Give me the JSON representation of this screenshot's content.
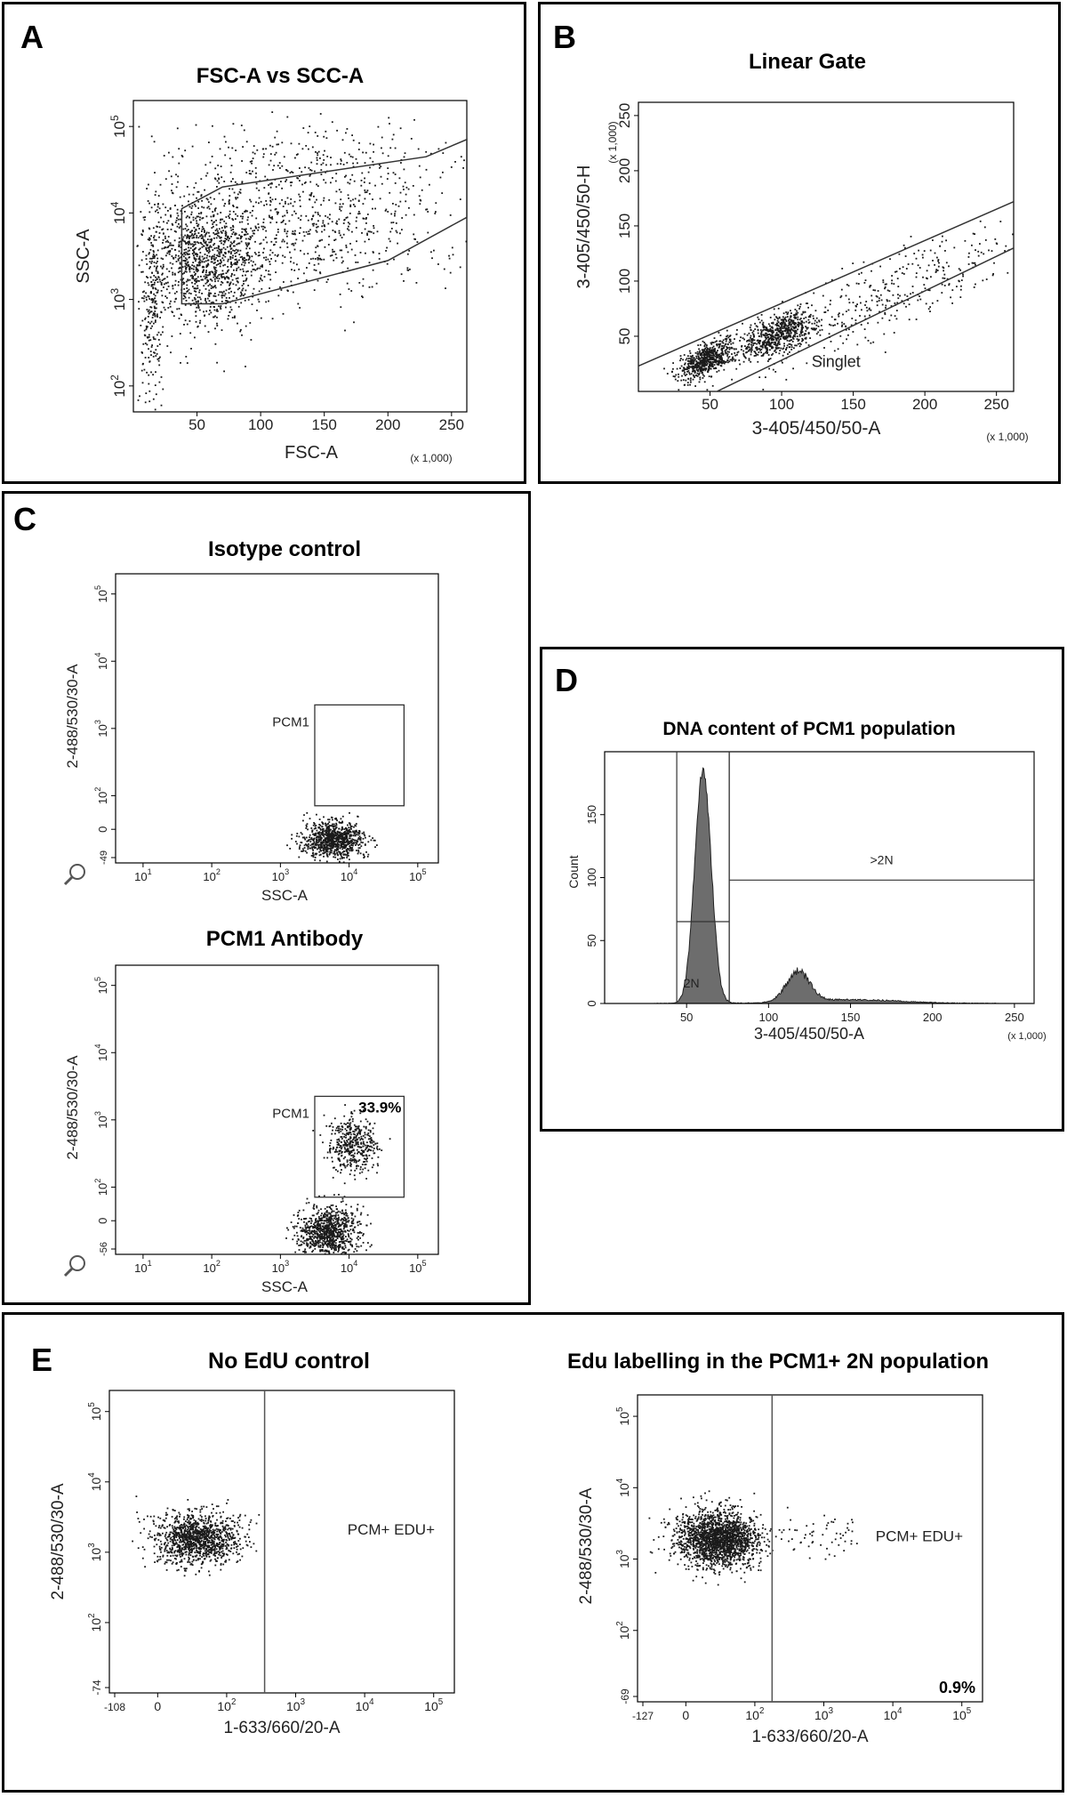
{
  "colors": {
    "frame": "#000000",
    "dots": "#1a1a1a",
    "gate": "#333333",
    "hist_fill": "#6d6d6d"
  },
  "panels": {
    "A": {
      "letter": "A"
    },
    "B": {
      "letter": "B"
    },
    "C": {
      "letter": "C"
    },
    "D": {
      "letter": "D"
    },
    "E": {
      "letter": "E"
    }
  },
  "chart_data": [
    {
      "id": "A",
      "type": "scatter",
      "title": "FSC-A vs SCC-A",
      "xlabel": "FSC-A",
      "ylabel": "SSC-A",
      "x_unit_note": "(x 1,000)",
      "xlim": [
        0,
        262
      ],
      "ylim_log10": [
        1.7,
        5.3
      ],
      "xticks": [
        {
          "v": 50,
          "label": "50"
        },
        {
          "v": 100,
          "label": "100"
        },
        {
          "v": 150,
          "label": "150"
        },
        {
          "v": 200,
          "label": "200"
        },
        {
          "v": 250,
          "label": "250"
        }
      ],
      "yticks": [
        {
          "v": 2,
          "base": "10",
          "exp": "2"
        },
        {
          "v": 3,
          "base": "10",
          "exp": "3"
        },
        {
          "v": 4,
          "base": "10",
          "exp": "4"
        },
        {
          "v": 5,
          "base": "10",
          "exp": "5"
        }
      ],
      "gate": [
        [
          38,
          4.05
        ],
        [
          70,
          4.3
        ],
        [
          230,
          4.65
        ],
        [
          262,
          4.85
        ],
        [
          262,
          3.95
        ],
        [
          200,
          3.45
        ],
        [
          70,
          2.95
        ],
        [
          38,
          2.95
        ]
      ],
      "clusters": [
        {
          "cx": 55,
          "cy": 3.45,
          "sx": 22,
          "sy": 0.38,
          "n": 1100
        },
        {
          "cx": 130,
          "cy": 3.85,
          "sx": 55,
          "sy": 0.38,
          "n": 700
        },
        {
          "cx": 14,
          "cy": 2.9,
          "sx": 5,
          "sy": 0.55,
          "n": 220
        },
        {
          "cx": 150,
          "cy": 4.6,
          "sx": 80,
          "sy": 0.25,
          "n": 250
        }
      ]
    },
    {
      "id": "B",
      "type": "scatter",
      "title": "Linear Gate",
      "xlabel": "3-405/450/50-A",
      "ylabel": "3-405/450/50-H",
      "x_unit_note": "(x 1,000)",
      "y_unit_note": "(x 1,000)",
      "xlim": [
        0,
        262
      ],
      "ylim": [
        0,
        262
      ],
      "xticks": [
        {
          "v": 50,
          "label": "50"
        },
        {
          "v": 100,
          "label": "100"
        },
        {
          "v": 150,
          "label": "150"
        },
        {
          "v": 200,
          "label": "200"
        },
        {
          "v": 250,
          "label": "250"
        }
      ],
      "yticks": [
        {
          "v": 50,
          "label": "50"
        },
        {
          "v": 100,
          "label": "100"
        },
        {
          "v": 150,
          "label": "150"
        },
        {
          "v": 200,
          "label": "200"
        },
        {
          "v": 250,
          "label": "250"
        }
      ],
      "gate_lines": [
        [
          [
            0,
            23
          ],
          [
            262,
            172
          ]
        ],
        [
          [
            15,
            -25
          ],
          [
            262,
            130
          ]
        ]
      ],
      "gate_label": "Singlet",
      "clusters": [
        {
          "cx": 48,
          "cy": 30,
          "sx": 10,
          "sy": 7,
          "n": 650,
          "slope": 0.55
        },
        {
          "cx": 97,
          "cy": 52,
          "sx": 12,
          "sy": 9,
          "n": 650,
          "slope": 0.55
        },
        {
          "cx": 170,
          "cy": 85,
          "sx": 50,
          "sy": 18,
          "n": 380,
          "slope": 0.55
        }
      ]
    },
    {
      "id": "C1",
      "type": "scatter",
      "title": "Isotype control",
      "xlabel": "SSC-A",
      "ylabel": "2-488/530/30-A",
      "y_min_label": "-49",
      "xlim_log10": [
        0.6,
        5.3
      ],
      "ylim_log10": [
        1.0,
        5.3
      ],
      "xticks": [
        {
          "v": 1,
          "base": "10",
          "exp": "1"
        },
        {
          "v": 2,
          "base": "10",
          "exp": "2"
        },
        {
          "v": 3,
          "base": "10",
          "exp": "3"
        },
        {
          "v": 4,
          "base": "10",
          "exp": "4"
        },
        {
          "v": 5,
          "base": "10",
          "exp": "5"
        }
      ],
      "yticks": [
        {
          "v": 1.5,
          "base": "0",
          "exp": ""
        },
        {
          "v": 2,
          "base": "10",
          "exp": "2"
        },
        {
          "v": 3,
          "base": "10",
          "exp": "3"
        },
        {
          "v": 4,
          "base": "10",
          "exp": "4"
        },
        {
          "v": 5,
          "base": "10",
          "exp": "5"
        }
      ],
      "gate_box": [
        3.5,
        1.85,
        4.8,
        3.35
      ],
      "gate_label": "PCM1",
      "percent": "",
      "clusters": [
        {
          "cx": 3.75,
          "cy": 1.35,
          "sx": 0.22,
          "sy": 0.14,
          "n": 900
        }
      ]
    },
    {
      "id": "C2",
      "type": "scatter",
      "title": "PCM1 Antibody",
      "xlabel": "SSC-A",
      "ylabel": "2-488/530/30-A",
      "y_min_label": "-56",
      "xlim_log10": [
        0.6,
        5.3
      ],
      "ylim_log10": [
        1.0,
        5.3
      ],
      "xticks": [
        {
          "v": 1,
          "base": "10",
          "exp": "1"
        },
        {
          "v": 2,
          "base": "10",
          "exp": "2"
        },
        {
          "v": 3,
          "base": "10",
          "exp": "3"
        },
        {
          "v": 4,
          "base": "10",
          "exp": "4"
        },
        {
          "v": 5,
          "base": "10",
          "exp": "5"
        }
      ],
      "yticks": [
        {
          "v": 1.5,
          "base": "0",
          "exp": ""
        },
        {
          "v": 2,
          "base": "10",
          "exp": "2"
        },
        {
          "v": 3,
          "base": "10",
          "exp": "3"
        },
        {
          "v": 4,
          "base": "10",
          "exp": "4"
        },
        {
          "v": 5,
          "base": "10",
          "exp": "5"
        }
      ],
      "gate_box": [
        3.5,
        1.85,
        4.8,
        3.35
      ],
      "gate_label": "PCM1",
      "percent": "33.9%",
      "clusters": [
        {
          "cx": 3.7,
          "cy": 1.35,
          "sx": 0.22,
          "sy": 0.18,
          "n": 900
        },
        {
          "cx": 4.05,
          "cy": 2.65,
          "sx": 0.18,
          "sy": 0.22,
          "n": 430
        }
      ]
    },
    {
      "id": "D",
      "type": "histogram",
      "title": "DNA content of PCM1 population",
      "xlabel": "3-405/450/50-A",
      "ylabel": "Count",
      "x_unit_note": "(x 1,000)",
      "xlim": [
        0,
        262
      ],
      "ylim": [
        0,
        200
      ],
      "xticks": [
        {
          "v": 50,
          "label": "50"
        },
        {
          "v": 100,
          "label": "100"
        },
        {
          "v": 150,
          "label": "150"
        },
        {
          "v": 200,
          "label": "200"
        },
        {
          "v": 250,
          "label": "250"
        }
      ],
      "yticks": [
        {
          "v": 0,
          "label": "0"
        },
        {
          "v": 50,
          "label": "50"
        },
        {
          "v": 100,
          "label": "100"
        },
        {
          "v": 150,
          "label": "150"
        }
      ],
      "peaks": [
        {
          "center": 60,
          "sd": 5,
          "height": 185
        },
        {
          "center": 118,
          "sd": 7,
          "height": 24
        },
        {
          "center": 150,
          "sd": 30,
          "height": 3
        }
      ],
      "gates": [
        {
          "label": "2N",
          "x0": 44,
          "x1": 76,
          "y": 65
        },
        {
          "label": ">2N",
          "x0": 76,
          "x1": 262,
          "y": 98
        }
      ]
    },
    {
      "id": "E1",
      "type": "scatter",
      "title": "No EdU control",
      "xlabel": "1-633/660/20-A",
      "ylabel": "2-488/530/30-A",
      "x_min_label": "-108",
      "y_min_label": "-74",
      "xlim_log10": [
        0.3,
        5.3
      ],
      "ylim_log10": [
        1.0,
        5.3
      ],
      "xticks": [
        {
          "v": 1.0,
          "base": "0",
          "exp": ""
        },
        {
          "v": 2,
          "base": "10",
          "exp": "2"
        },
        {
          "v": 3,
          "base": "10",
          "exp": "3"
        },
        {
          "v": 4,
          "base": "10",
          "exp": "4"
        },
        {
          "v": 5,
          "base": "10",
          "exp": "5"
        }
      ],
      "yticks": [
        {
          "v": 2,
          "base": "10",
          "exp": "2"
        },
        {
          "v": 3,
          "base": "10",
          "exp": "3"
        },
        {
          "v": 4,
          "base": "10",
          "exp": "4"
        },
        {
          "v": 5,
          "base": "10",
          "exp": "5"
        }
      ],
      "divider_x": 2.55,
      "gate_label": "PCM+ EDU+",
      "percent": "",
      "clusters": [
        {
          "cx": 1.55,
          "cy": 3.2,
          "sx": 0.3,
          "sy": 0.18,
          "n": 1200
        }
      ]
    },
    {
      "id": "E2",
      "type": "scatter",
      "title": "Edu labelling in the PCM1+ 2N population",
      "xlabel": "1-633/660/20-A",
      "ylabel": "2-488/530/30-A",
      "x_min_label": "-127",
      "y_min_label": "-69",
      "xlim_log10": [
        0.3,
        5.3
      ],
      "ylim_log10": [
        1.0,
        5.3
      ],
      "xticks": [
        {
          "v": 1.0,
          "base": "0",
          "exp": ""
        },
        {
          "v": 2,
          "base": "10",
          "exp": "2"
        },
        {
          "v": 3,
          "base": "10",
          "exp": "3"
        },
        {
          "v": 4,
          "base": "10",
          "exp": "4"
        },
        {
          "v": 5,
          "base": "10",
          "exp": "5"
        }
      ],
      "yticks": [
        {
          "v": 2,
          "base": "10",
          "exp": "2"
        },
        {
          "v": 3,
          "base": "10",
          "exp": "3"
        },
        {
          "v": 4,
          "base": "10",
          "exp": "4"
        },
        {
          "v": 5,
          "base": "10",
          "exp": "5"
        }
      ],
      "divider_x": 2.25,
      "gate_label": "PCM+ EDU+",
      "percent": "0.9%",
      "clusters": [
        {
          "cx": 1.45,
          "cy": 3.3,
          "sx": 0.3,
          "sy": 0.2,
          "n": 1900
        },
        {
          "cx": 2.85,
          "cy": 3.35,
          "sx": 0.45,
          "sy": 0.18,
          "n": 60
        }
      ]
    }
  ]
}
